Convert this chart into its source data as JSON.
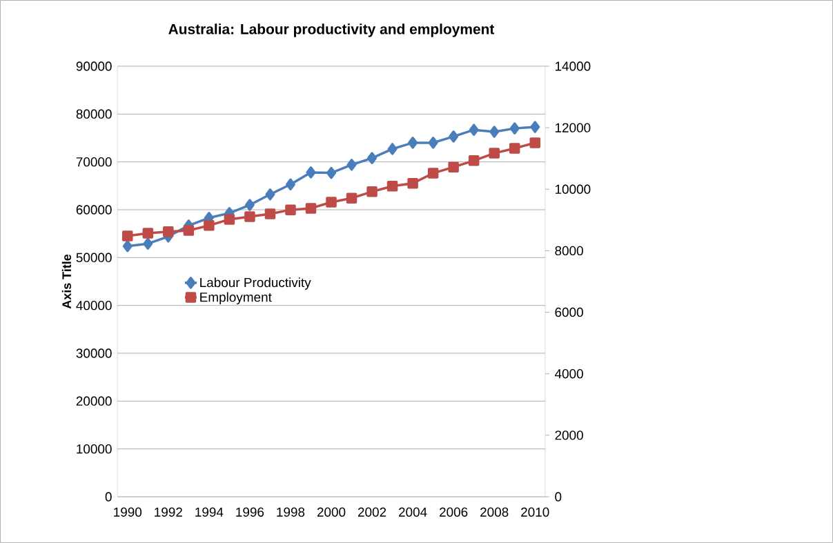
{
  "chart_data": {
    "type": "line",
    "title": "Australia: Labour productivity and employment",
    "ylabel": "Axis Title",
    "categories": [
      "1990",
      null,
      "1992",
      null,
      "1994",
      null,
      "1996",
      null,
      "1998",
      null,
      "2000",
      null,
      "2002",
      null,
      "2004",
      null,
      "2006",
      null,
      "2008",
      null,
      "2010"
    ],
    "series": [
      {
        "name": "Labour Productivity",
        "color": "#4a7ebb",
        "marker": "diamond",
        "values": [
          52400,
          52900,
          54400,
          56700,
          58300,
          59300,
          61000,
          63200,
          65300,
          67800,
          67700,
          69400,
          70800,
          72700,
          74000,
          74000,
          75300,
          76700,
          76300,
          77000,
          77300
        ]
      },
      {
        "name": "Employment",
        "color": "#be4b48",
        "marker": "square",
        "axis": "y2",
        "values": [
          8480,
          8570,
          8620,
          8660,
          8820,
          9020,
          9110,
          9200,
          9330,
          9380,
          9580,
          9710,
          9920,
          10100,
          10190,
          10520,
          10720,
          10930,
          11170,
          11330,
          11510
        ]
      }
    ],
    "ylim": [
      0,
      90000
    ],
    "yticks": [
      0,
      10000,
      20000,
      30000,
      40000,
      50000,
      60000,
      70000,
      80000,
      90000
    ],
    "y2lim": [
      0,
      14000
    ],
    "y2ticks": [
      0,
      2000,
      4000,
      6000,
      8000,
      10000,
      12000,
      14000
    ],
    "grid": "y",
    "legend": "left"
  }
}
